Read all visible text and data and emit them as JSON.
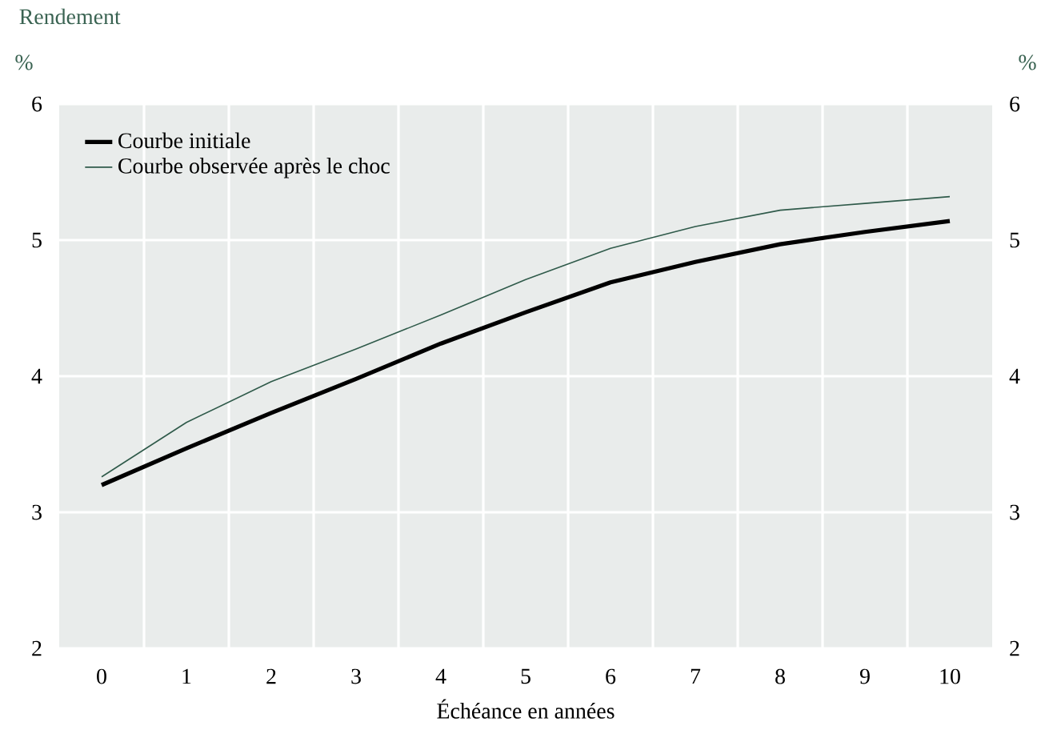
{
  "chart_data": {
    "type": "line",
    "title": "Rendement",
    "ylabel": "%",
    "y2label": "%",
    "xlabel": "Échéance en années",
    "x": [
      0,
      1,
      2,
      3,
      4,
      5,
      6,
      7,
      8,
      9,
      10
    ],
    "series": [
      {
        "name": "Courbe initiale",
        "color": "#000000",
        "values": [
          3.2,
          3.47,
          3.73,
          3.98,
          4.24,
          4.47,
          4.69,
          4.84,
          4.97,
          5.06,
          5.14
        ]
      },
      {
        "name": "Courbe observée après le choc",
        "color": "#2f5a4a",
        "values": [
          3.26,
          3.66,
          3.96,
          4.2,
          4.45,
          4.71,
          4.94,
          5.1,
          5.22,
          5.27,
          5.32
        ]
      }
    ],
    "xlim": [
      -0.5,
      10.5
    ],
    "xticks": [
      0,
      1,
      2,
      3,
      4,
      5,
      6,
      7,
      8,
      9,
      10,
      {
        "value": 0.5,
        "label": null
      },
      {
        "value": 1.5,
        "label": null
      },
      {
        "value": 2.5,
        "label": null
      },
      {
        "value": 3.5,
        "label": null
      },
      {
        "value": 4.5,
        "label": null
      },
      {
        "value": 5.5,
        "label": null
      },
      {
        "value": 6.5,
        "label": null
      },
      {
        "value": 7.5,
        "label": null
      },
      {
        "value": 8.5,
        "label": null
      },
      {
        "value": 9.5,
        "label": null
      }
    ],
    "ylim": [
      2,
      6
    ],
    "yticks": [
      2,
      3,
      4,
      5,
      6
    ],
    "y2lim": [
      2,
      6
    ],
    "y2ticks": [
      2,
      3,
      4,
      5,
      6
    ],
    "grid": true,
    "legend": "top left",
    "marker": "none",
    "line_style": "solid"
  }
}
